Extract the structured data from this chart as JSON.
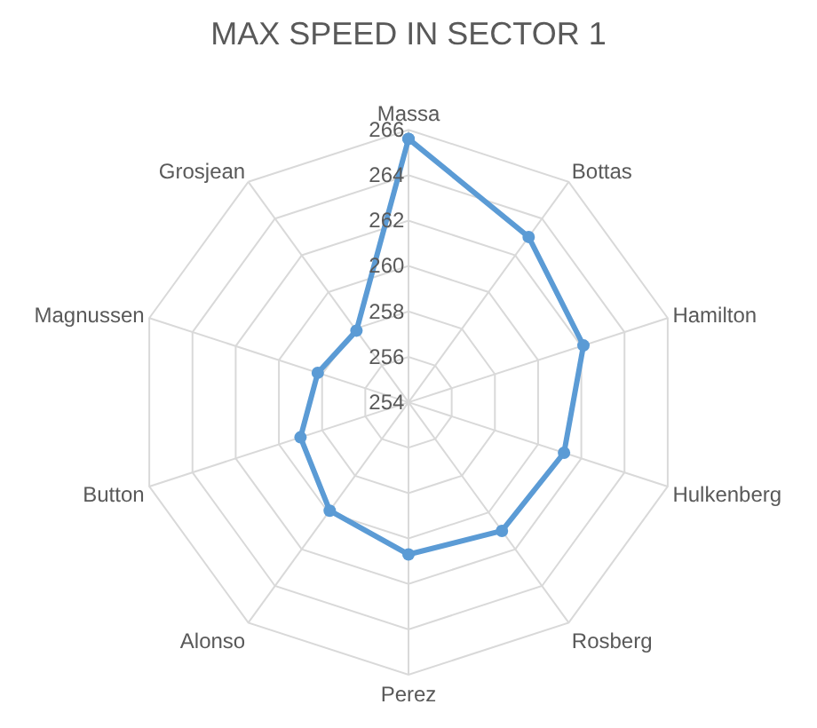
{
  "chart_data": {
    "type": "radar",
    "title": "MAX SPEED IN SECTOR 1",
    "categories": [
      "Massa",
      "Bottas",
      "Hamilton",
      "Hulkenberg",
      "Rosberg",
      "Perez",
      "Alonso",
      "Button",
      "Magnussen",
      "Grosjean"
    ],
    "series": [
      {
        "color": "#5b9bd5",
        "values": [
          265.6,
          263.0,
          262.1,
          261.2,
          261.0,
          260.7,
          259.9,
          259.0,
          258.2,
          257.9
        ]
      }
    ],
    "ylim": [
      254,
      266
    ],
    "yticks": [
      254,
      256,
      258,
      260,
      262,
      264,
      266
    ],
    "grid": true,
    "marker": "circle"
  }
}
